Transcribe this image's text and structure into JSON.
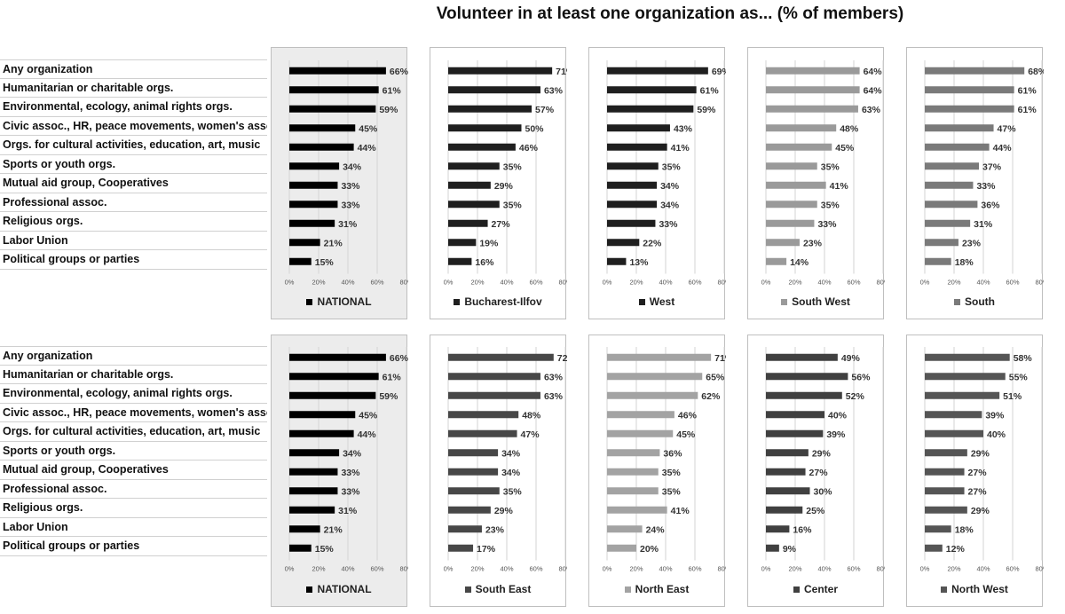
{
  "chart_data": {
    "type": "bar",
    "orientation": "horizontal",
    "title": "Volunteer in at least one organization as... (% of members)",
    "categories": [
      "Any organization",
      "Humanitarian or charitable orgs.",
      "Environmental, ecology, animal rights orgs.",
      "Civic assoc., HR, peace movements, women's assoc.",
      "Orgs. for cultural activities, education, art, music",
      "Sports or youth orgs.",
      "Mutual aid group, Cooperatives",
      "Professional assoc.",
      "Religious orgs.",
      "Labor Union",
      "Political groups or parties"
    ],
    "xlim": [
      0,
      80
    ],
    "ticks": [
      "0%",
      "20%",
      "40%",
      "60%",
      "80%"
    ],
    "grid": true,
    "legend_placement": "bottom",
    "rows": [
      [
        {
          "name": "NATIONAL",
          "color": "#000000",
          "values": [
            66,
            61,
            59,
            45,
            44,
            34,
            33,
            33,
            31,
            21,
            15
          ]
        },
        {
          "name": "Bucharest-Ilfov",
          "color": "#1f1f1f",
          "values": [
            71,
            63,
            57,
            50,
            46,
            35,
            29,
            35,
            27,
            19,
            16
          ]
        },
        {
          "name": "West",
          "color": "#1f1f1f",
          "values": [
            69,
            61,
            59,
            43,
            41,
            35,
            34,
            34,
            33,
            22,
            13
          ]
        },
        {
          "name": "South West",
          "color": "#9a9a9a",
          "values": [
            64,
            64,
            63,
            48,
            45,
            35,
            41,
            35,
            33,
            23,
            14
          ]
        },
        {
          "name": "South",
          "color": "#7a7a7a",
          "values": [
            68,
            61,
            61,
            47,
            44,
            37,
            33,
            36,
            31,
            23,
            18
          ]
        }
      ],
      [
        {
          "name": "NATIONAL",
          "color": "#000000",
          "values": [
            66,
            61,
            59,
            45,
            44,
            34,
            33,
            33,
            31,
            21,
            15
          ]
        },
        {
          "name": "South East",
          "color": "#474747",
          "values": [
            72,
            63,
            63,
            48,
            47,
            34,
            34,
            35,
            29,
            23,
            17
          ]
        },
        {
          "name": "North East",
          "color": "#a3a3a3",
          "values": [
            71,
            65,
            62,
            46,
            45,
            36,
            35,
            35,
            41,
            24,
            20
          ]
        },
        {
          "name": "Center",
          "color": "#404040",
          "values": [
            49,
            56,
            52,
            40,
            39,
            29,
            27,
            30,
            25,
            16,
            9
          ]
        },
        {
          "name": "North West",
          "color": "#555555",
          "values": [
            58,
            55,
            51,
            39,
            40,
            29,
            27,
            27,
            29,
            18,
            12
          ]
        }
      ]
    ]
  }
}
